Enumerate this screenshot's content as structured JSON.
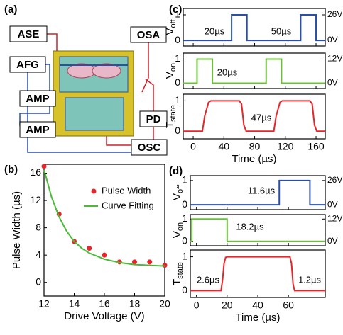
{
  "diagram": {
    "label": "(a)",
    "boxes": [
      "ASE",
      "AFG",
      "AMP",
      "AMP",
      "OSA",
      "PD",
      "OSC"
    ]
  },
  "chart_data": [
    {
      "type": "scatter",
      "label": "(b)",
      "xlabel": "Drive Voltage (V)",
      "ylabel": "Pulse Width (µs)",
      "xlim": [
        12,
        20
      ],
      "ylim": [
        -2,
        17.3
      ],
      "xticks": [
        12,
        14,
        16,
        18,
        20
      ],
      "yticks": [
        0,
        4,
        8,
        12,
        16
      ],
      "show_xtick_labels": true,
      "legend": "upper right",
      "series": [
        {
          "name": "Pulse Width",
          "kind": "marker",
          "color": "#e8262a",
          "x": [
            12,
            13,
            14,
            15,
            16,
            17,
            18,
            19,
            20
          ],
          "values": [
            17,
            10,
            6,
            5,
            4,
            3,
            3,
            3,
            2.5
          ]
        },
        {
          "name": "Curve Fitting",
          "kind": "line",
          "color": "#4cb93a",
          "x": [
            12,
            12.5,
            13,
            13.5,
            14,
            14.5,
            15,
            16,
            17,
            18,
            19,
            20
          ],
          "values": [
            16.5,
            12.5,
            9.6,
            7.5,
            6,
            5,
            4.3,
            3.4,
            2.9,
            2.6,
            2.5,
            2.4
          ]
        }
      ]
    },
    {
      "type": "line",
      "label": "(c)",
      "ylabel": "V",
      "ylabel_sub": "off",
      "xlim": [
        -13,
        172
      ],
      "xticks": [
        0,
        40,
        80,
        120,
        160
      ],
      "show_xtick_labels": false,
      "ylim": [
        -0.22,
        1.25
      ],
      "yticks": [
        0,
        1
      ],
      "y2lim": [
        -5.72,
        32.5
      ],
      "y2ticks": [
        {
          "value": 0,
          "label": "0V"
        },
        {
          "value": 26,
          "label": "26V"
        }
      ],
      "series": [
        {
          "color": "#2a4fa8",
          "x": [
            -13,
            50,
            50,
            70,
            70,
            140,
            140,
            160,
            160,
            172
          ],
          "values": [
            0,
            0,
            1,
            1,
            0,
            0,
            1,
            1,
            0,
            0
          ]
        }
      ],
      "annotations": [
        "20µs",
        "50µs"
      ]
    },
    {
      "type": "line",
      "ylabel": "V",
      "ylabel_sub": "on",
      "xlim": [
        -13,
        172
      ],
      "xticks": [
        0,
        40,
        80,
        120,
        160
      ],
      "show_xtick_labels": false,
      "ylim": [
        -0.22,
        1.25
      ],
      "yticks": [
        0,
        1
      ],
      "y2lim": [
        -2.64,
        15
      ],
      "y2ticks": [
        {
          "value": 0,
          "label": "0V"
        },
        {
          "value": 12,
          "label": "12V"
        }
      ],
      "series": [
        {
          "color": "#6cbf3c",
          "x": [
            -13,
            5,
            5,
            25,
            25,
            95,
            95,
            115,
            115,
            172
          ],
          "values": [
            0,
            0,
            1,
            1,
            0,
            0,
            1,
            1,
            0,
            0
          ]
        }
      ],
      "annotations": [
        "20µs"
      ]
    },
    {
      "type": "line",
      "ylabel": "T",
      "ylabel_sub": "state",
      "xlabel": "Time (µs)",
      "xlim": [
        -13,
        172
      ],
      "xticks": [
        0,
        40,
        80,
        120,
        160
      ],
      "show_xtick_labels": true,
      "ylim": [
        -0.25,
        1.22
      ],
      "yticks": [
        0,
        1
      ],
      "series": [
        {
          "color": "#e8262a",
          "x": [
            -13,
            12,
            15,
            20,
            23,
            60,
            63,
            66,
            69,
            105,
            108,
            113,
            116,
            152,
            155,
            158,
            161,
            172
          ],
          "values": [
            0,
            0,
            0.5,
            0.95,
            1,
            1,
            0.9,
            0.2,
            0,
            0,
            0.5,
            0.95,
            1,
            1,
            0.9,
            0.2,
            0,
            0
          ]
        }
      ],
      "annotations": [
        "47µs"
      ]
    },
    {
      "type": "line",
      "label": "(d)",
      "ylabel": "V",
      "ylabel_sub": "off",
      "xlim": [
        -4,
        84
      ],
      "xticks": [
        0,
        20,
        40,
        60
      ],
      "show_xtick_labels": false,
      "ylim": [
        -0.2,
        1.2
      ],
      "yticks": [
        0,
        1
      ],
      "y2lim": [
        -5.2,
        31.2
      ],
      "y2ticks": [
        {
          "value": 0,
          "label": "0V"
        },
        {
          "value": 26,
          "label": "26V"
        }
      ],
      "series": [
        {
          "color": "#2a4fa8",
          "x": [
            -4,
            54,
            54,
            74,
            74,
            84
          ],
          "values": [
            0,
            0,
            1,
            1,
            0,
            0
          ]
        }
      ],
      "annotations": [
        "11.6µs"
      ]
    },
    {
      "type": "line",
      "ylabel": "V",
      "ylabel_sub": "on",
      "xlim": [
        -4,
        84
      ],
      "xticks": [
        0,
        20,
        40,
        60
      ],
      "show_xtick_labels": false,
      "ylim": [
        -0.2,
        1.2
      ],
      "yticks": [
        0,
        1
      ],
      "y2lim": [
        -2.4,
        14.4
      ],
      "y2ticks": [
        {
          "value": 0,
          "label": "0V"
        },
        {
          "value": 12,
          "label": "12V"
        }
      ],
      "series": [
        {
          "color": "#6cbf3c",
          "x": [
            -4,
            -3,
            -3,
            20,
            20,
            84
          ],
          "values": [
            0,
            0,
            1,
            1,
            0,
            0
          ]
        }
      ],
      "annotations": [
        "18.2µs"
      ]
    },
    {
      "type": "line",
      "ylabel": "T",
      "ylabel_sub": "state",
      "xlabel": "Time (µs)",
      "xlim": [
        -4,
        84
      ],
      "xticks": [
        0,
        20,
        40,
        60
      ],
      "show_xtick_labels": true,
      "ylim": [
        -0.2,
        1.2
      ],
      "yticks": [
        0,
        1
      ],
      "series": [
        {
          "color": "#e8262a",
          "x": [
            -4,
            16,
            17,
            18,
            19,
            20,
            61,
            62,
            63,
            64,
            84
          ],
          "values": [
            0,
            0,
            0.3,
            0.8,
            0.98,
            1,
            1,
            0.8,
            0.2,
            0,
            0
          ]
        }
      ],
      "annotations": [
        "2.6µs",
        "1.2µs"
      ]
    }
  ]
}
